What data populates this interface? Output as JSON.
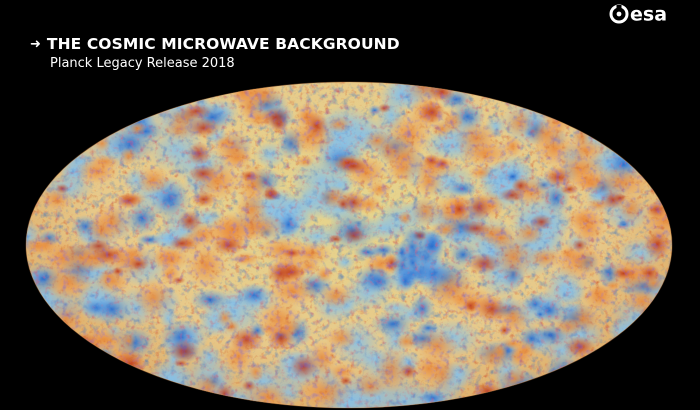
{
  "brand": {
    "logo_text": "esa",
    "logo_color": "#ffffff"
  },
  "heading": {
    "title": "THE COSMIC MICROWAVE BACKGROUND",
    "subtitle": "Planck Legacy Release 2018"
  },
  "colors": {
    "background": "#000000",
    "text": "#ffffff",
    "cold": "#1f5fc4",
    "cool": "#7ab6e6",
    "mid": "#e8d98a",
    "warm": "#f0a050",
    "hot": "#c8401a"
  },
  "image": {
    "subject": "all-sky-cmb-map",
    "projection": "mollweide"
  }
}
